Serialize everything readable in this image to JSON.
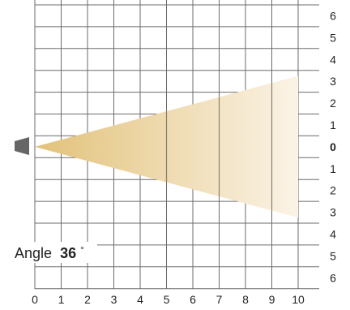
{
  "diagram": {
    "angle_label": "Angle",
    "angle_value": "36",
    "angle_unit": "°",
    "x_ticks": [
      "0",
      "1",
      "2",
      "3",
      "4",
      "5",
      "6",
      "7",
      "8",
      "9",
      "10"
    ],
    "y_ticks": [
      "6",
      "5",
      "4",
      "3",
      "2",
      "1",
      "0",
      "1",
      "2",
      "3",
      "4",
      "5",
      "6"
    ],
    "beam_angle_deg": 36,
    "beam_range": [
      0,
      10
    ],
    "colors": {
      "grid": "#6b6b6b",
      "beam_origin": "#e2c27a",
      "beam_end": "#fbf3e6",
      "fixture": "#666666",
      "text": "#222222"
    },
    "icons": [
      "light-fixture-icon"
    ]
  }
}
